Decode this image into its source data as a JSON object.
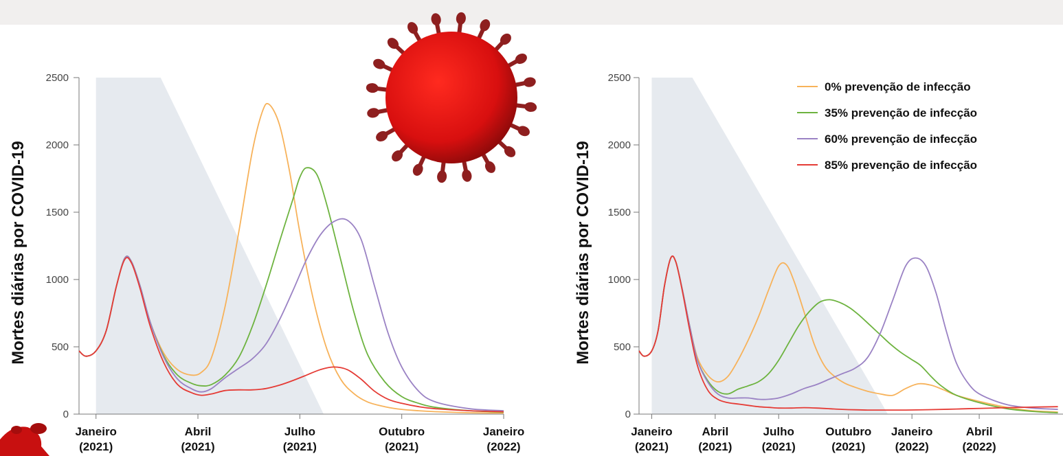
{
  "header": {
    "text": ""
  },
  "colors": {
    "zero": "#f7b25a",
    "thirtyfive": "#6db33f",
    "sixty": "#9a82c4",
    "eightyfive": "#e53b35",
    "shade": "#e6eaef",
    "virus": "#c81010"
  },
  "icons": [
    "coronavirus-icon"
  ],
  "chart_data": [
    {
      "type": "line",
      "ylabel": "Mortes diárias por COVID-19",
      "ylim": [
        0,
        2500
      ],
      "yticks": [
        0,
        500,
        1000,
        1500,
        2000,
        2500
      ],
      "xlim": [
        -0.5,
        12
      ],
      "xticks": [
        {
          "pos": 0,
          "label": "Janeiro",
          "year": "(2021)"
        },
        {
          "pos": 3,
          "label": "Abril",
          "year": "(2021)"
        },
        {
          "pos": 6,
          "label": "Julho",
          "year": "(2021)"
        },
        {
          "pos": 9,
          "label": "Outubro",
          "year": "(2021)"
        },
        {
          "pos": 12,
          "label": "Janeiro",
          "year": "(2022)"
        }
      ],
      "shaded_region": [
        [
          0,
          2500
        ],
        [
          1.9,
          2500
        ],
        [
          6.7,
          0
        ],
        [
          0,
          0
        ]
      ],
      "series": [
        {
          "name": "0% prevenção de infecção",
          "color_key": "zero",
          "x": [
            -0.5,
            -0.3,
            0,
            0.3,
            0.6,
            0.85,
            1.05,
            1.3,
            1.6,
            2,
            2.4,
            2.8,
            3.1,
            3.4,
            3.8,
            4.2,
            4.6,
            4.9,
            5.1,
            5.4,
            5.7,
            6,
            6.4,
            6.8,
            7.2,
            7.6,
            8,
            8.5,
            9,
            9.5,
            10,
            11,
            12
          ],
          "y": [
            470,
            430,
            470,
            620,
            950,
            1160,
            1130,
            950,
            680,
            450,
            330,
            290,
            310,
            420,
            800,
            1350,
            1950,
            2250,
            2300,
            2150,
            1800,
            1350,
            850,
            480,
            260,
            150,
            90,
            55,
            35,
            25,
            18,
            10,
            8
          ]
        },
        {
          "name": "35% prevenção de infecção",
          "color_key": "thirtyfive",
          "x": [
            -0.5,
            -0.3,
            0,
            0.3,
            0.6,
            0.85,
            1.05,
            1.3,
            1.6,
            2,
            2.4,
            2.8,
            3.1,
            3.4,
            3.8,
            4.2,
            4.6,
            5,
            5.4,
            5.8,
            6,
            6.2,
            6.5,
            6.8,
            7.2,
            7.6,
            8,
            8.5,
            9,
            9.5,
            10,
            11,
            12
          ],
          "y": [
            470,
            430,
            470,
            620,
            950,
            1160,
            1130,
            950,
            680,
            430,
            290,
            230,
            210,
            220,
            290,
            420,
            650,
            950,
            1280,
            1600,
            1760,
            1830,
            1780,
            1550,
            1150,
            750,
            440,
            240,
            130,
            80,
            50,
            25,
            15
          ]
        },
        {
          "name": "60% prevenção de infecção",
          "color_key": "sixty",
          "x": [
            -0.5,
            -0.3,
            0,
            0.3,
            0.6,
            0.85,
            1.05,
            1.3,
            1.6,
            2,
            2.4,
            2.8,
            3.1,
            3.4,
            3.8,
            4.2,
            4.6,
            5,
            5.4,
            5.8,
            6.2,
            6.6,
            7,
            7.4,
            7.8,
            8.2,
            8.6,
            9,
            9.5,
            10,
            11,
            12
          ],
          "y": [
            470,
            430,
            470,
            620,
            950,
            1160,
            1130,
            950,
            680,
            420,
            260,
            190,
            165,
            190,
            270,
            340,
            410,
            520,
            700,
            920,
            1150,
            1330,
            1430,
            1440,
            1300,
            950,
            600,
            350,
            170,
            90,
            40,
            25
          ]
        },
        {
          "name": "85% prevenção de infecção",
          "color_key": "eightyfive",
          "x": [
            -0.5,
            -0.3,
            0,
            0.3,
            0.6,
            0.85,
            1.05,
            1.3,
            1.6,
            2,
            2.4,
            2.8,
            3.1,
            3.4,
            3.8,
            4.2,
            4.6,
            5,
            5.4,
            5.8,
            6.2,
            6.6,
            7,
            7.4,
            7.8,
            8.2,
            8.6,
            9,
            9.5,
            10,
            11,
            12
          ],
          "y": [
            470,
            430,
            470,
            620,
            950,
            1150,
            1120,
            930,
            650,
            380,
            220,
            160,
            140,
            150,
            175,
            180,
            180,
            190,
            215,
            250,
            290,
            330,
            350,
            330,
            260,
            170,
            110,
            80,
            55,
            40,
            25,
            18
          ]
        }
      ]
    },
    {
      "type": "line",
      "ylabel": "Mortes diárias por COVID-19",
      "ylim": [
        0,
        2500
      ],
      "yticks": [
        0,
        500,
        1000,
        1500,
        2000,
        2500
      ],
      "xlim": [
        -0.5,
        16.2
      ],
      "xticks": [
        {
          "pos": 0,
          "label": "Janeiro",
          "year": "(2021)"
        },
        {
          "pos": 2.5,
          "label": "Abril",
          "year": "(2021)"
        },
        {
          "pos": 5,
          "label": "Julho",
          "year": "(2021)"
        },
        {
          "pos": 7.75,
          "label": "Outubro",
          "year": "(2021)"
        },
        {
          "pos": 10.25,
          "label": "Janeiro",
          "year": "(2022)"
        },
        {
          "pos": 12.9,
          "label": "Abril",
          "year": "(2022)"
        }
      ],
      "shaded_region": [
        [
          0,
          2500
        ],
        [
          1.6,
          2500
        ],
        [
          9.3,
          0
        ],
        [
          0,
          0
        ]
      ],
      "legend": {
        "position": "top-right"
      },
      "series": [
        {
          "name": "0% prevenção de infecção",
          "color_key": "zero",
          "x": [
            -0.5,
            -0.3,
            0,
            0.25,
            0.5,
            0.75,
            0.95,
            1.2,
            1.5,
            1.8,
            2.2,
            2.6,
            3,
            3.4,
            3.8,
            4.2,
            4.6,
            5,
            5.3,
            5.6,
            6,
            6.4,
            6.8,
            7.2,
            7.6,
            8,
            8.5,
            9,
            9.5,
            10,
            10.5,
            11,
            11.5,
            12,
            13,
            14,
            15,
            16
          ],
          "y": [
            470,
            430,
            470,
            620,
            950,
            1160,
            1130,
            930,
            650,
            420,
            290,
            240,
            280,
            400,
            550,
            720,
            920,
            1100,
            1110,
            990,
            760,
            520,
            360,
            280,
            230,
            200,
            170,
            150,
            140,
            190,
            225,
            215,
            180,
            140,
            90,
            50,
            25,
            15
          ]
        },
        {
          "name": "35% prevenção de infecção",
          "color_key": "thirtyfive",
          "x": [
            -0.5,
            -0.3,
            0,
            0.25,
            0.5,
            0.75,
            0.95,
            1.2,
            1.5,
            1.8,
            2.2,
            2.6,
            3,
            3.4,
            3.8,
            4.2,
            4.6,
            5,
            5.4,
            5.8,
            6.2,
            6.6,
            7,
            7.4,
            7.8,
            8.2,
            8.6,
            9,
            9.4,
            9.8,
            10.2,
            10.6,
            11,
            11.4,
            12,
            13,
            14,
            15,
            16
          ],
          "y": [
            470,
            430,
            470,
            620,
            950,
            1160,
            1130,
            930,
            650,
            400,
            250,
            170,
            150,
            185,
            210,
            240,
            300,
            400,
            530,
            660,
            760,
            830,
            850,
            830,
            790,
            730,
            660,
            590,
            520,
            460,
            410,
            360,
            280,
            210,
            140,
            80,
            40,
            20,
            10
          ]
        },
        {
          "name": "60% prevenção de infecção",
          "color_key": "sixty",
          "x": [
            -0.5,
            -0.3,
            0,
            0.25,
            0.5,
            0.75,
            0.95,
            1.2,
            1.5,
            1.8,
            2.2,
            2.6,
            3,
            3.4,
            3.8,
            4.2,
            4.6,
            5,
            5.5,
            6,
            6.5,
            7,
            7.5,
            8,
            8.5,
            9,
            9.5,
            10,
            10.4,
            10.8,
            11.2,
            11.6,
            12,
            12.5,
            13,
            14,
            15,
            16
          ],
          "y": [
            470,
            430,
            470,
            620,
            950,
            1160,
            1130,
            930,
            650,
            400,
            240,
            150,
            120,
            120,
            120,
            110,
            110,
            120,
            150,
            190,
            220,
            260,
            300,
            340,
            420,
            600,
            850,
            1100,
            1160,
            1100,
            900,
            620,
            380,
            220,
            140,
            70,
            45,
            35
          ]
        },
        {
          "name": "85% prevenção de infecção",
          "color_key": "eightyfive",
          "x": [
            -0.5,
            -0.3,
            0,
            0.25,
            0.5,
            0.75,
            0.95,
            1.2,
            1.5,
            1.8,
            2.2,
            2.6,
            3,
            3.4,
            3.8,
            4.2,
            4.6,
            5,
            5.5,
            6,
            6.5,
            7,
            7.5,
            8,
            8.5,
            9,
            9.5,
            10,
            11,
            12,
            13,
            14,
            15,
            16
          ],
          "y": [
            470,
            430,
            470,
            620,
            950,
            1160,
            1130,
            920,
            620,
            360,
            180,
            110,
            85,
            75,
            65,
            55,
            50,
            45,
            45,
            48,
            45,
            40,
            35,
            32,
            30,
            30,
            30,
            30,
            33,
            38,
            43,
            48,
            52,
            55
          ]
        }
      ]
    }
  ]
}
